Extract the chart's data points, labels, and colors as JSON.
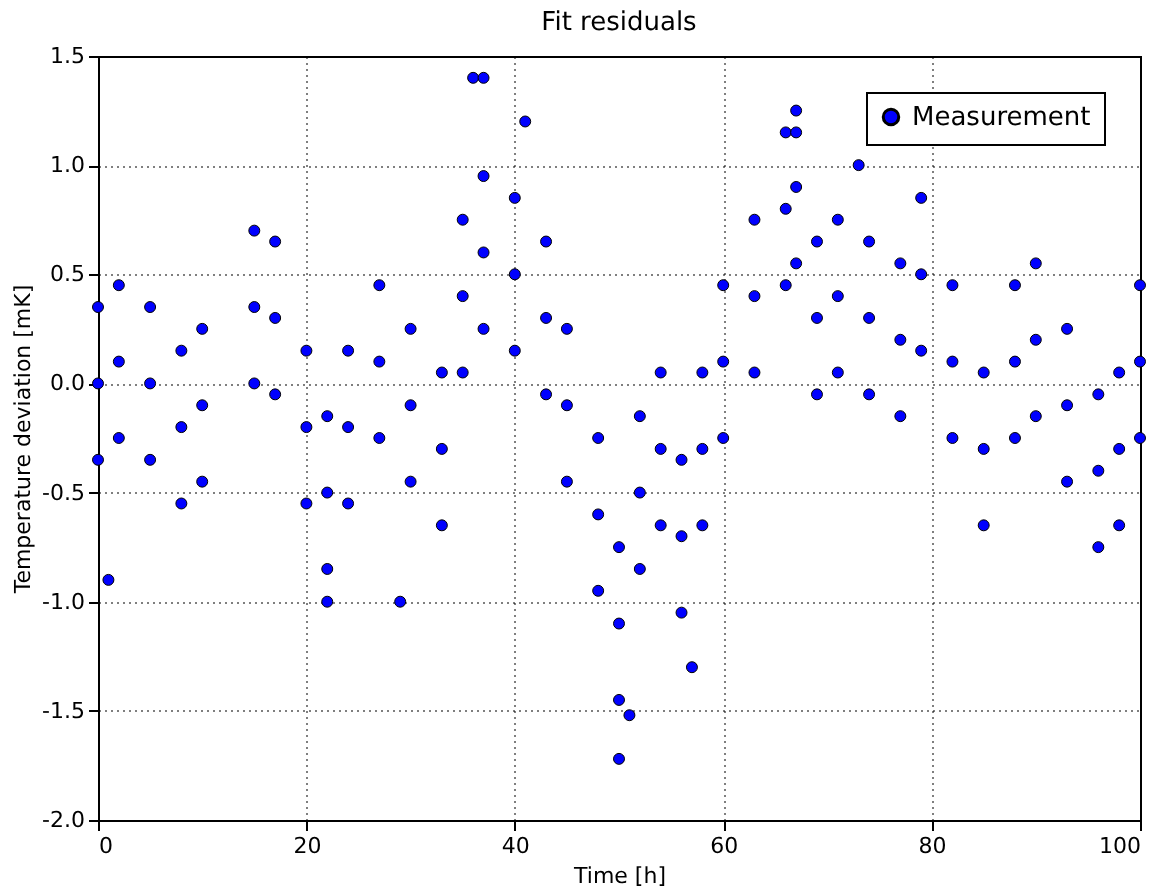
{
  "chart_data": {
    "type": "scatter",
    "title": "Fit residuals",
    "xlabel": "Time [h]",
    "ylabel": "Temperature deviation [mK]",
    "xlim": [
      0,
      100
    ],
    "xticks": [
      0,
      20,
      40,
      60,
      80,
      100
    ],
    "ylim": [
      -2.0,
      1.5
    ],
    "yticks": [
      {
        "value": -2.0,
        "label": "-2.0"
      },
      {
        "value": -1.5,
        "label": "-1.5"
      },
      {
        "value": -1.0,
        "label": "-1.0"
      },
      {
        "value": -0.5,
        "label": "-0.5"
      },
      {
        "value": 0.0,
        "label": "0.0"
      },
      {
        "value": 0.5,
        "label": "0.5"
      },
      {
        "value": 1.0,
        "label": "1.0"
      },
      {
        "value": 1.5,
        "label": "1.5"
      }
    ],
    "grid": true,
    "legend": "top right",
    "marker": "circle",
    "series": [
      {
        "name": "Measurement",
        "color": "#0000ff",
        "x": [
          0,
          2,
          5,
          8,
          10,
          15,
          17,
          20,
          22,
          24,
          27,
          30,
          33,
          35,
          37,
          40,
          43,
          45,
          48,
          50,
          52,
          54,
          56,
          58,
          60,
          63,
          66,
          67,
          69,
          71,
          74,
          77,
          79,
          82,
          85,
          88,
          90,
          93,
          96,
          98,
          100,
          0,
          2,
          5,
          8,
          10,
          15,
          17,
          20,
          22,
          24,
          27,
          30,
          33,
          35,
          37,
          40,
          43,
          45,
          48,
          50,
          52,
          54,
          56,
          58,
          60,
          63,
          66,
          67,
          69,
          71,
          74,
          77,
          79,
          82,
          85,
          88,
          90,
          93,
          96,
          98,
          100,
          0,
          2,
          5,
          8,
          10,
          15,
          17,
          20,
          22,
          24,
          27,
          30,
          33,
          35,
          37,
          40,
          43,
          45,
          48,
          50,
          52,
          54,
          56,
          58,
          60,
          63,
          66,
          67,
          69,
          71,
          74,
          77,
          79,
          82,
          85,
          88,
          90,
          93,
          96,
          98,
          100,
          36,
          37,
          41,
          50,
          51,
          67,
          73,
          1,
          22,
          29,
          57
        ],
        "values": [
          0.0,
          0.1,
          0.0,
          -0.2,
          -0.1,
          0.35,
          0.3,
          -0.2,
          -0.5,
          -0.2,
          0.1,
          -0.1,
          -0.3,
          0.4,
          0.6,
          0.5,
          0.3,
          -0.1,
          -0.6,
          -1.1,
          -0.5,
          -0.3,
          -0.7,
          -0.3,
          0.1,
          0.4,
          0.8,
          0.9,
          0.3,
          0.4,
          0.3,
          0.2,
          0.5,
          0.1,
          -0.3,
          0.1,
          0.2,
          -0.1,
          -0.4,
          -0.3,
          0.1,
          0.35,
          0.45,
          0.35,
          0.15,
          0.25,
          0.7,
          0.65,
          0.15,
          -0.15,
          0.15,
          0.45,
          0.25,
          0.05,
          0.75,
          0.95,
          0.85,
          0.65,
          0.25,
          -0.25,
          -0.75,
          -0.15,
          0.05,
          -0.35,
          0.05,
          0.45,
          0.75,
          1.15,
          1.25,
          0.65,
          0.75,
          0.65,
          0.55,
          0.85,
          0.45,
          0.05,
          0.45,
          0.55,
          0.25,
          -0.05,
          0.05,
          0.45,
          -0.35,
          -0.25,
          -0.35,
          -0.55,
          -0.45,
          0.0,
          -0.05,
          -0.55,
          -0.85,
          -0.55,
          -0.25,
          -0.45,
          -0.65,
          0.05,
          0.25,
          0.15,
          -0.05,
          -0.45,
          -0.95,
          -1.45,
          -0.85,
          -0.65,
          -1.05,
          -0.65,
          -0.25,
          0.05,
          0.45,
          0.55,
          -0.05,
          0.05,
          -0.05,
          -0.15,
          0.15,
          -0.25,
          -0.65,
          -0.25,
          -0.15,
          -0.45,
          -0.75,
          -0.65,
          -0.25,
          1.4,
          1.4,
          1.2,
          -1.72,
          -1.52,
          1.15,
          1.0,
          -0.9,
          -1.0,
          -1.0,
          -1.3
        ]
      }
    ]
  }
}
